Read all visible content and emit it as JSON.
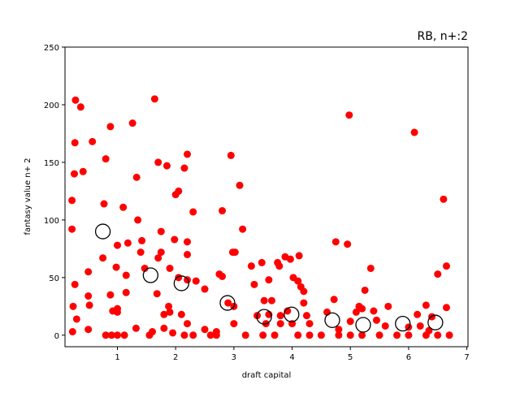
{
  "chart_data": {
    "type": "scatter",
    "title": "RB, n+:2",
    "xlabel": "draft capital",
    "ylabel": "fantasy value n+ 2",
    "xlim": [
      0.1,
      7.02
    ],
    "ylim": [
      -10,
      250
    ],
    "xticks": [
      1,
      2,
      3,
      4,
      5,
      6,
      7
    ],
    "yticks": [
      0,
      50,
      100,
      150,
      200,
      250
    ],
    "series": [
      {
        "color": "#ff0000",
        "marker": "filled",
        "x": [
          0.28,
          0.27,
          0.26,
          0.22,
          0.22,
          0.27,
          0.24,
          0.3,
          0.23,
          0.37,
          0.41,
          0.57,
          0.5,
          0.5,
          0.52,
          0.5,
          0.8,
          0.88,
          0.77,
          0.75,
          0.88,
          0.92,
          1.0,
          1.0,
          0.98,
          1.0,
          0.9,
          1.0,
          0.8,
          1.12,
          1.1,
          1.15,
          1.15,
          1.18,
          1.26,
          1.33,
          1.35,
          1.32,
          1.4,
          1.42,
          1.47,
          1.55,
          1.6,
          1.64,
          1.7,
          1.75,
          1.7,
          1.75,
          1.68,
          1.8,
          1.8,
          1.85,
          1.9,
          1.88,
          1.9,
          1.95,
          1.98,
          2.0,
          2.05,
          2.05,
          2.1,
          2.15,
          2.2,
          2.2,
          2.2,
          2.2,
          2.2,
          2.3,
          2.35,
          2.15,
          2.3,
          2.5,
          2.5,
          2.6,
          2.7,
          2.7,
          2.75,
          2.8,
          2.8,
          2.9,
          2.95,
          2.98,
          3.02,
          3.0,
          3.1,
          3.15,
          3.0,
          3.2,
          3.3,
          3.35,
          3.4,
          3.48,
          3.55,
          3.52,
          3.6,
          3.65,
          3.6,
          3.75,
          3.78,
          3.8,
          3.8,
          3.88,
          3.92,
          3.97,
          4.02,
          4.0,
          4.1,
          4.12,
          4.15,
          4.2,
          4.2,
          4.25,
          4.3,
          4.1,
          4.5,
          4.6,
          4.72,
          4.75,
          4.8,
          4.95,
          4.98,
          5.0,
          5.1,
          5.15,
          5.2,
          5.25,
          5.35,
          5.4,
          5.45,
          5.6,
          5.65,
          5.8,
          6.0,
          6.1,
          6.15,
          6.2,
          6.3,
          6.35,
          6.4,
          6.5,
          6.6,
          6.65,
          6.65,
          6.7,
          6.5,
          6.0,
          5.5,
          5.0,
          4.8,
          3.7,
          3.5,
          4.3,
          5.2,
          6.3
        ],
        "values": [
          204,
          167,
          140,
          117,
          92,
          44,
          25,
          14,
          3,
          198,
          142,
          168,
          55,
          34,
          26,
          5,
          153,
          181,
          114,
          67,
          35,
          21,
          23,
          20,
          59,
          78,
          0,
          0,
          0,
          0,
          111,
          37,
          52,
          80,
          184,
          137,
          100,
          6,
          72,
          82,
          58,
          0,
          3,
          205,
          150,
          90,
          67,
          72,
          36,
          18,
          6,
          147,
          58,
          25,
          20,
          2,
          83,
          122,
          125,
          50,
          18,
          145,
          157,
          81,
          70,
          48,
          10,
          107,
          47,
          0,
          0,
          40,
          5,
          0,
          0,
          3,
          53,
          51,
          108,
          28,
          156,
          72,
          72,
          25,
          130,
          92,
          10,
          0,
          60,
          44,
          17,
          63,
          10,
          30,
          48,
          30,
          18,
          63,
          60,
          17,
          10,
          68,
          21,
          66,
          50,
          10,
          47,
          69,
          42,
          38,
          28,
          17,
          10,
          0,
          0,
          20,
          31,
          81,
          5,
          79,
          191,
          12,
          20,
          25,
          23,
          39,
          58,
          21,
          13,
          8,
          25,
          0,
          7,
          176,
          18,
          8,
          26,
          4,
          16,
          53,
          118,
          60,
          24,
          0,
          0,
          0,
          0,
          0,
          0,
          0,
          0,
          0,
          0,
          0
        ]
      },
      {
        "color": "#000000",
        "marker": "hollow",
        "x": [
          0.75,
          1.57,
          2.1,
          2.89,
          3.52,
          3.99,
          4.69,
          5.22,
          5.9,
          6.46
        ],
        "values": [
          90,
          52,
          45,
          28,
          16,
          18,
          13,
          9,
          10,
          11
        ]
      }
    ]
  }
}
